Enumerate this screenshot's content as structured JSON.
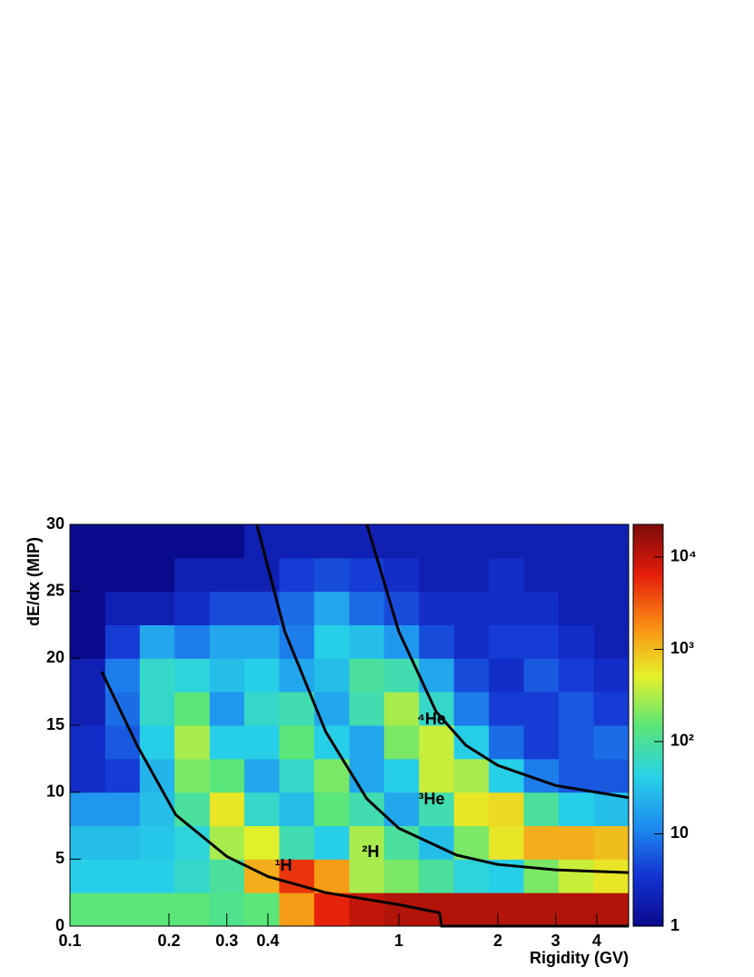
{
  "chart_data": {
    "type": "heatmap",
    "x_label": "Rigidity (GV)",
    "y_label": "dE/dx (MIP)",
    "xlog": true,
    "xlim": [
      0.1,
      5
    ],
    "xticks": [
      0.1,
      0.2,
      0.3,
      0.4,
      1,
      2,
      3,
      4
    ],
    "ylim": [
      0,
      30
    ],
    "yticks": [
      0,
      5,
      10,
      15,
      20,
      25,
      30
    ],
    "zlog": true,
    "zlim": [
      1,
      22600
    ],
    "zticks": [
      1,
      10,
      {
        "value": 100,
        "label": "10²"
      },
      {
        "value": 1000,
        "label": "10³"
      },
      {
        "value": 10000,
        "label": "10⁴"
      }
    ],
    "colorscale": [
      "#0a0a8c",
      "#1432d2",
      "#1e8cf0",
      "#28d2e6",
      "#5ae678",
      "#e6f028",
      "#fa8c14",
      "#e61e0a",
      "#7d0a0a"
    ],
    "xbins": [
      0.1,
      0.128,
      0.163,
      0.208,
      0.266,
      0.339,
      0.433,
      0.553,
      0.707,
      0.902,
      1.152,
      1.471,
      1.879,
      2.399,
      3.064,
      3.913,
      5.0
    ],
    "ybins": [
      0,
      2.5,
      5,
      7.5,
      10,
      12.5,
      15,
      17.5,
      20,
      22.5,
      25,
      27.5,
      30
    ],
    "z": [
      [
        150,
        150,
        150,
        150,
        120,
        150,
        1500,
        6000,
        10000,
        12000,
        12000,
        12000,
        12000,
        12000,
        12000,
        12000
      ],
      [
        40,
        40,
        40,
        60,
        100,
        1200,
        5000,
        1500,
        300,
        200,
        100,
        50,
        40,
        200,
        400,
        600
      ],
      [
        30,
        30,
        35,
        50,
        300,
        500,
        80,
        40,
        300,
        100,
        30,
        200,
        600,
        1200,
        1200,
        1000
      ],
      [
        15,
        15,
        30,
        100,
        600,
        60,
        30,
        150,
        80,
        20,
        80,
        600,
        700,
        100,
        40,
        30
      ],
      [
        3,
        4,
        25,
        200,
        150,
        20,
        60,
        200,
        20,
        40,
        400,
        300,
        40,
        10,
        6,
        6
      ],
      [
        3,
        6,
        40,
        300,
        40,
        40,
        150,
        40,
        20,
        200,
        400,
        40,
        8,
        4,
        6,
        8
      ],
      [
        2,
        8,
        60,
        150,
        15,
        60,
        80,
        20,
        80,
        300,
        60,
        10,
        4,
        4,
        6,
        4
      ],
      [
        2,
        10,
        60,
        50,
        30,
        40,
        20,
        30,
        100,
        80,
        20,
        5,
        3,
        6,
        4,
        3
      ],
      [
        1,
        4,
        20,
        10,
        20,
        20,
        10,
        40,
        30,
        15,
        5,
        3,
        4,
        4,
        3,
        2
      ],
      [
        1,
        2,
        2,
        3,
        5,
        5,
        8,
        20,
        8,
        5,
        3,
        3,
        3,
        3,
        2,
        2
      ],
      [
        1,
        1,
        1,
        2,
        2,
        2,
        4,
        5,
        4,
        3,
        2,
        2,
        3,
        2,
        2,
        2
      ],
      [
        1,
        1,
        1,
        1,
        1,
        2,
        2,
        2,
        2,
        2,
        2,
        2,
        2,
        2,
        2,
        2
      ]
    ],
    "lines": [
      {
        "color": "#000000",
        "x": [
          0.125,
          0.16,
          0.21,
          0.3,
          0.4,
          0.6,
          1.0,
          1.33,
          1.35,
          5.0
        ],
        "y": [
          19,
          13.5,
          8.3,
          5.2,
          3.7,
          2.5,
          1.6,
          1.0,
          0,
          0
        ]
      },
      {
        "color": "#000000",
        "x": [
          0.37,
          0.45,
          0.6,
          0.8,
          1.0,
          1.5,
          2.0,
          3.0,
          5.0
        ],
        "y": [
          30,
          22,
          14.5,
          9.5,
          7.3,
          5.3,
          4.6,
          4.2,
          4.0
        ]
      },
      {
        "color": "#000000",
        "x": [
          0.8,
          1.0,
          1.3,
          1.6,
          2.0,
          3.0,
          5.0
        ],
        "y": [
          30,
          22,
          16,
          13.5,
          12,
          10.5,
          9.6
        ]
      }
    ],
    "annotations": [
      "¹H",
      "²H",
      "³He",
      "⁴He"
    ]
  }
}
